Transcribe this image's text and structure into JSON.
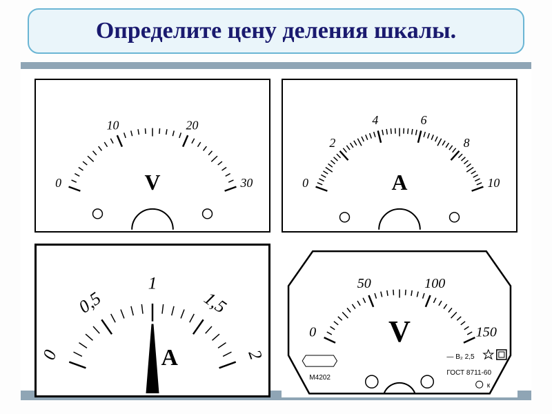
{
  "title": "Определите цену деления шкалы.",
  "colors": {
    "title_bg": "#eaf5fa",
    "title_border": "#6ab5d4",
    "title_text": "#1a1a6f",
    "board_frame": "#8fa5b5",
    "stroke": "#000000",
    "background": "#ffffff"
  },
  "meters": {
    "top_left": {
      "type": "voltmeter",
      "unit": "V",
      "range": [
        0,
        30
      ],
      "major_labels": [
        0,
        10,
        20,
        30
      ],
      "minor_per_major": 10,
      "arc_start_deg": 200,
      "arc_end_deg": 340,
      "terminals": 2,
      "has_needle": false
    },
    "top_right": {
      "type": "ammeter",
      "unit": "A",
      "range": [
        0,
        10
      ],
      "major_labels": [
        0,
        2,
        4,
        6,
        8,
        10
      ],
      "minor_per_major": 10,
      "arc_start_deg": 200,
      "arc_end_deg": 340,
      "terminals": 2,
      "has_needle": false
    },
    "bottom_left": {
      "type": "ammeter",
      "unit": "A",
      "range": [
        0,
        2
      ],
      "major_labels": [
        0,
        0.5,
        1,
        1.5,
        2
      ],
      "label_strings": [
        "0",
        "0,5",
        "1",
        "1,5",
        "2"
      ],
      "minor_per_major": 5,
      "arc_start_deg": 200,
      "arc_end_deg": 340,
      "terminals": 0,
      "has_needle": true,
      "needle_value": 1.0
    },
    "bottom_right": {
      "type": "voltmeter",
      "unit": "V",
      "range": [
        0,
        150
      ],
      "major_labels": [
        0,
        50,
        100,
        150
      ],
      "minor_per_major": 10,
      "arc_start_deg": 205,
      "arc_end_deg": 335,
      "terminals": 2,
      "has_needle": false,
      "model": "М4202",
      "gost": "ГОСТ 8711-60",
      "class": "B₂ 2,5",
      "extra_symbol": "к"
    }
  }
}
